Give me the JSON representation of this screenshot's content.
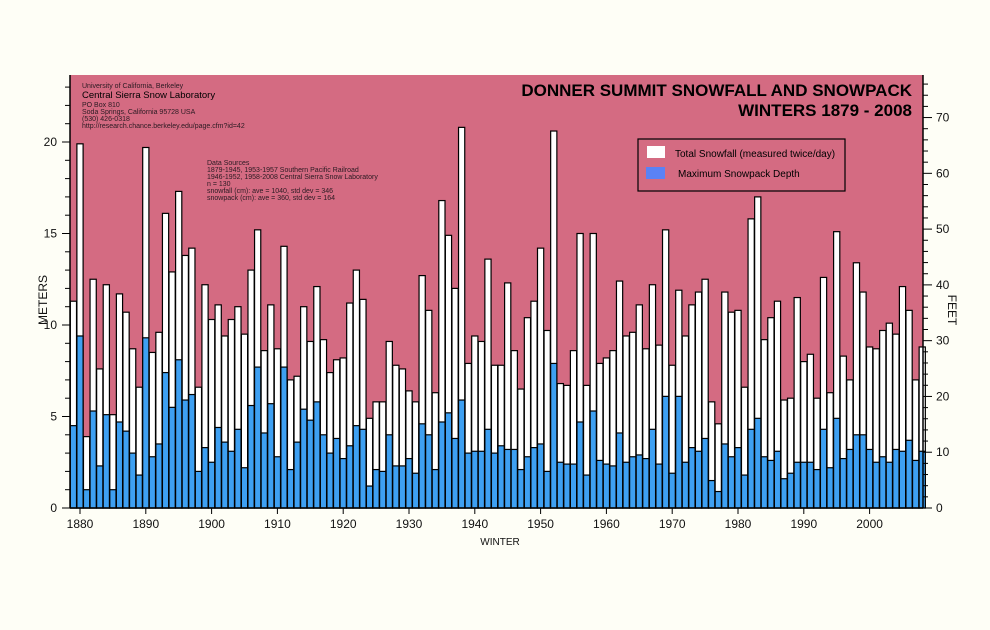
{
  "chart_data": {
    "type": "bar",
    "title": "DONNER SUMMIT SNOWFALL AND SNOWPACK",
    "subtitle": "WINTERS 1879 - 2008",
    "xlabel": "WINTER",
    "ylabel": "METERS",
    "ylabel_right": "FEET",
    "ylim": [
      0,
      23.5
    ],
    "ylim_right_feet": [
      0,
      77
    ],
    "grid": false,
    "legend_position": "upper right",
    "x_tick_labels": [
      "1880",
      "1890",
      "1900",
      "1910",
      "1920",
      "1930",
      "1940",
      "1950",
      "1960",
      "1970",
      "1980",
      "1990",
      "2000"
    ],
    "y_tick_labels": [
      "0",
      "5",
      "10",
      "15",
      "20"
    ],
    "y_right_tick_labels": [
      "0",
      "10",
      "20",
      "30",
      "40",
      "50",
      "60",
      "70"
    ],
    "x_start": 1879,
    "x_end": 2008,
    "series": [
      {
        "name": "Total Snowfall (measured twice/day)",
        "color": "#ffffff",
        "values": [
          11.3,
          19.9,
          3.9,
          12.5,
          7.6,
          12.2,
          5.1,
          11.7,
          10.7,
          8.7,
          6.6,
          19.7,
          8.5,
          9.6,
          16.1,
          12.9,
          17.3,
          13.8,
          14.2,
          6.6,
          12.2,
          10.3,
          11.1,
          9.4,
          10.3,
          11.0,
          9.5,
          13.0,
          15.2,
          8.6,
          11.1,
          8.7,
          14.3,
          7.0,
          7.2,
          11.0,
          9.1,
          12.1,
          9.2,
          7.4,
          8.1,
          8.2,
          11.2,
          13.0,
          11.4,
          4.9,
          5.8,
          5.8,
          9.1,
          7.8,
          7.6,
          6.4,
          5.8,
          12.7,
          10.8,
          6.3,
          16.8,
          14.9,
          12.0,
          20.8,
          7.9,
          9.4,
          9.1,
          13.6,
          7.8,
          7.8,
          12.3,
          8.6,
          6.5,
          10.4,
          11.3,
          14.2,
          9.7,
          20.6,
          6.8,
          6.7,
          8.6,
          15.0,
          6.7,
          15.0,
          7.9,
          8.2,
          8.6,
          12.4,
          9.4,
          9.6,
          11.1,
          8.7,
          12.2,
          8.9,
          15.2,
          7.8,
          11.9,
          9.4,
          11.1,
          11.8,
          12.5,
          5.8,
          4.6,
          11.8,
          10.7,
          10.8,
          6.6,
          15.8,
          17.0,
          9.2,
          10.4,
          11.3,
          5.9,
          6.0,
          11.5,
          8.0,
          8.4,
          6.0,
          12.6,
          6.3,
          15.1,
          8.3,
          7.0,
          13.4,
          11.8,
          8.8,
          8.7,
          9.7,
          10.1,
          9.5,
          12.1,
          10.8,
          7.0,
          8.8
        ]
      },
      {
        "name": "Maximum Snowpack Depth",
        "color": "#3ea0f2",
        "values": [
          4.5,
          9.4,
          1.0,
          5.3,
          2.3,
          5.1,
          1.0,
          4.7,
          4.2,
          3.0,
          1.8,
          9.3,
          2.8,
          3.5,
          7.4,
          5.5,
          8.1,
          5.9,
          6.2,
          2.0,
          3.3,
          2.5,
          4.4,
          3.6,
          3.1,
          4.3,
          2.2,
          5.6,
          7.7,
          4.1,
          5.7,
          2.8,
          7.7,
          2.1,
          3.6,
          5.4,
          4.8,
          5.8,
          4.0,
          3.0,
          3.8,
          2.7,
          3.4,
          4.5,
          4.3,
          1.2,
          2.1,
          2.0,
          4.0,
          2.3,
          2.3,
          2.7,
          1.9,
          4.6,
          4.0,
          2.1,
          4.7,
          5.2,
          3.8,
          5.9,
          3.0,
          3.1,
          3.1,
          4.3,
          3.0,
          3.4,
          3.2,
          3.2,
          2.1,
          2.8,
          3.3,
          3.5,
          2.0,
          7.9,
          2.5,
          2.4,
          2.4,
          4.7,
          1.8,
          5.3,
          2.6,
          2.4,
          2.3,
          4.1,
          2.5,
          2.8,
          2.9,
          2.7,
          4.3,
          2.4,
          6.1,
          1.9,
          6.1,
          2.5,
          3.3,
          3.1,
          3.8,
          1.5,
          0.9,
          3.5,
          2.8,
          3.3,
          1.8,
          4.3,
          4.9,
          2.8,
          2.6,
          3.1,
          1.6,
          1.9,
          2.5,
          2.5,
          2.5,
          2.1,
          4.3,
          2.2,
          4.9,
          2.7,
          3.2,
          4.0,
          4.0,
          3.2,
          2.5,
          2.8,
          2.5,
          3.2,
          3.1,
          3.7,
          2.6,
          3.1
        ]
      }
    ],
    "annotations": {
      "data_sources_title": "Data Sources",
      "data_sources_lines": [
        "1879-1945, 1953-1957 Southern Pacific Railroad",
        "1946-1952, 1958-2008 Central Sierra Snow Laboratory",
        "n = 130",
        "snowfall (cm): ave = 1040, std dev = 346",
        "snowpack (cm): ave = 360, std dev = 164"
      ]
    }
  },
  "header": {
    "university": "University of California, Berkeley",
    "lab": "Central Sierra Snow Laboratory",
    "address_lines": [
      "PO Box 810",
      "Soda Springs, California 95728 USA",
      "(530) 426-0318",
      "http://research.chance.berkeley.edu/page.cfm?id=42"
    ]
  },
  "legend": {
    "items": [
      {
        "label": "Total Snowfall (measured twice/day)",
        "color": "#ffffff"
      },
      {
        "label": "Maximum Snowpack Depth",
        "color": "#5a82f6"
      }
    ]
  },
  "colors": {
    "plot_background": "#d46b82",
    "page_background": "#fefef6",
    "snowpack": "#3ea0f2",
    "snowfall": "#ffffff"
  }
}
